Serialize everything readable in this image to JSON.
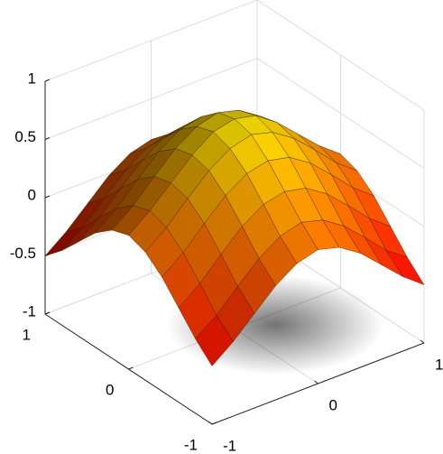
{
  "chart_data": {
    "type": "surface",
    "colormap": "autumn",
    "grid": true,
    "x": [
      -1,
      -0.8,
      -0.6,
      -0.4,
      -0.2,
      0,
      0.2,
      0.4,
      0.6,
      0.8,
      1
    ],
    "y": [
      -1,
      -0.8,
      -0.6,
      -0.4,
      -0.2,
      0,
      0.2,
      0.4,
      0.6,
      0.8,
      1
    ],
    "z": [
      [
        -0.5,
        -0.36,
        -0.19,
        -0.02,
        0.1,
        0.15,
        0.1,
        -0.02,
        -0.19,
        -0.36,
        -0.5
      ],
      [
        -0.36,
        -0.23,
        -0.05,
        0.12,
        0.24,
        0.29,
        0.24,
        0.12,
        -0.05,
        -0.23,
        -0.36
      ],
      [
        -0.19,
        -0.05,
        0.13,
        0.3,
        0.42,
        0.46,
        0.42,
        0.3,
        0.13,
        -0.05,
        -0.19
      ],
      [
        -0.02,
        0.12,
        0.3,
        0.47,
        0.59,
        0.63,
        0.59,
        0.47,
        0.3,
        0.12,
        -0.02
      ],
      [
        0.1,
        0.24,
        0.42,
        0.59,
        0.71,
        0.76,
        0.71,
        0.59,
        0.42,
        0.24,
        0.1
      ],
      [
        0.15,
        0.29,
        0.46,
        0.63,
        0.76,
        0.8,
        0.76,
        0.63,
        0.46,
        0.29,
        0.15
      ],
      [
        0.1,
        0.24,
        0.42,
        0.59,
        0.71,
        0.76,
        0.71,
        0.59,
        0.42,
        0.24,
        0.1
      ],
      [
        -0.02,
        0.12,
        0.3,
        0.47,
        0.59,
        0.63,
        0.59,
        0.47,
        0.3,
        0.12,
        -0.02
      ],
      [
        -0.19,
        -0.05,
        0.13,
        0.3,
        0.42,
        0.46,
        0.42,
        0.3,
        0.13,
        -0.05,
        -0.19
      ],
      [
        -0.36,
        -0.23,
        -0.05,
        0.12,
        0.24,
        0.29,
        0.24,
        0.12,
        -0.05,
        -0.23,
        -0.36
      ],
      [
        -0.5,
        -0.36,
        -0.19,
        -0.02,
        0.1,
        0.15,
        0.1,
        -0.02,
        -0.19,
        -0.36,
        -0.5
      ]
    ],
    "xlim": [
      -1,
      1
    ],
    "ylim": [
      -1,
      1
    ],
    "zlim": [
      -1,
      1
    ],
    "xticks": [
      -1,
      0,
      1
    ],
    "yticks": [
      -1,
      0,
      1
    ],
    "zticks": [
      -1,
      -0.5,
      0,
      0.5,
      1
    ]
  }
}
